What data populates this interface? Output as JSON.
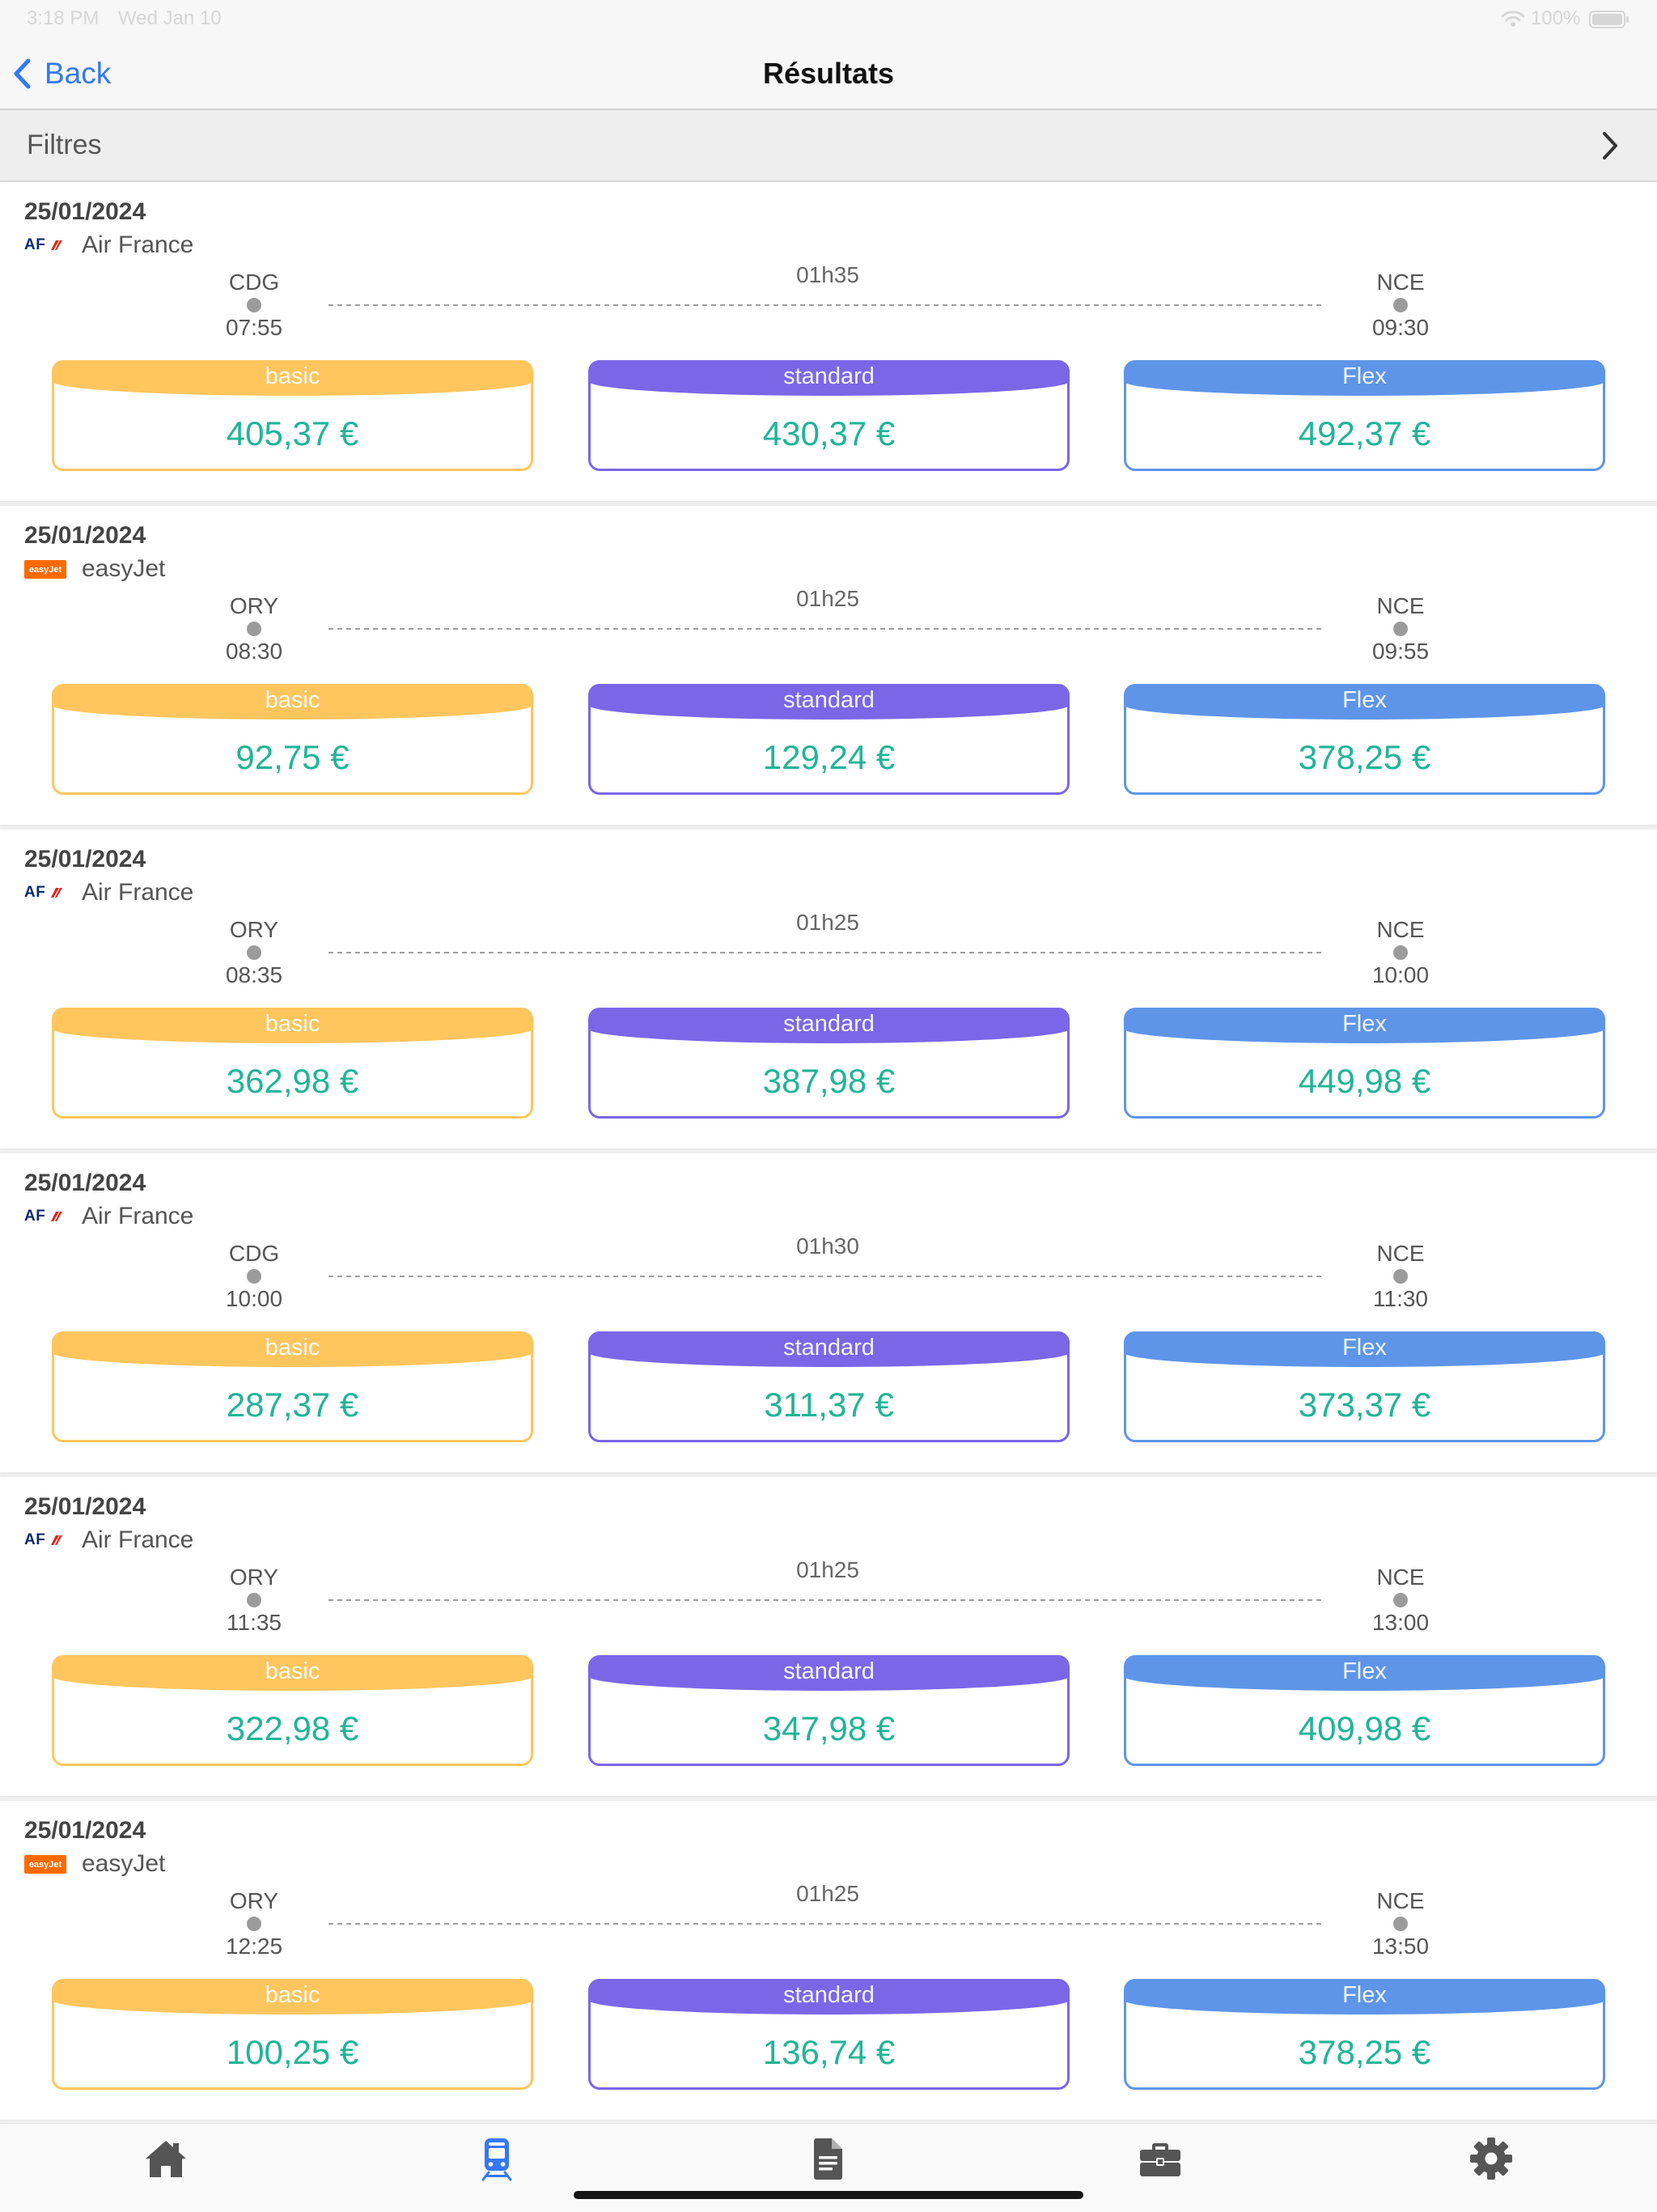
{
  "status_bar": {
    "time": "3:18 PM",
    "date": "Wed Jan 10",
    "battery": "100%",
    "icons": [
      "wifi-icon",
      "battery-icon"
    ]
  },
  "nav": {
    "back_icon": "chevron-left-icon",
    "back_label": "Back",
    "title": "Résultats"
  },
  "filters": {
    "label": "Filtres",
    "icon": "chevron-right-icon"
  },
  "colors": {
    "accent": "#3478F6",
    "price": "#20B596",
    "icon": "#555555"
  },
  "fare_classes": [
    {
      "label": "basic",
      "color": "#FFC65E"
    },
    {
      "label": "standard",
      "color": "#7B66E8"
    },
    {
      "label": "Flex",
      "color": "#5E95E9"
    }
  ],
  "results": [
    {
      "date": "25/01/2024",
      "airline": "Air France",
      "logo": {
        "name": "air-france-logo",
        "text": "AF"
      },
      "origin": "CDG",
      "departure": "07:55",
      "duration": "01h35",
      "destination": "NCE",
      "arrival": "09:30",
      "prices": [
        "405,37 €",
        "430,37 €",
        "492,37 €"
      ]
    },
    {
      "date": "25/01/2024",
      "airline": "easyJet",
      "logo": {
        "name": "easyjet-logo",
        "text": "easyJet"
      },
      "origin": "ORY",
      "departure": "08:30",
      "duration": "01h25",
      "destination": "NCE",
      "arrival": "09:55",
      "prices": [
        "92,75 €",
        "129,24 €",
        "378,25 €"
      ]
    },
    {
      "date": "25/01/2024",
      "airline": "Air France",
      "logo": {
        "name": "air-france-logo",
        "text": "AF"
      },
      "origin": "ORY",
      "departure": "08:35",
      "duration": "01h25",
      "destination": "NCE",
      "arrival": "10:00",
      "prices": [
        "362,98 €",
        "387,98 €",
        "449,98 €"
      ]
    },
    {
      "date": "25/01/2024",
      "airline": "Air France",
      "logo": {
        "name": "air-france-logo",
        "text": "AF"
      },
      "origin": "CDG",
      "departure": "10:00",
      "duration": "01h30",
      "destination": "NCE",
      "arrival": "11:30",
      "prices": [
        "287,37 €",
        "311,37 €",
        "373,37 €"
      ]
    },
    {
      "date": "25/01/2024",
      "airline": "Air France",
      "logo": {
        "name": "air-france-logo",
        "text": "AF"
      },
      "origin": "ORY",
      "departure": "11:35",
      "duration": "01h25",
      "destination": "NCE",
      "arrival": "13:00",
      "prices": [
        "322,98 €",
        "347,98 €",
        "409,98 €"
      ]
    },
    {
      "date": "25/01/2024",
      "airline": "easyJet",
      "logo": {
        "name": "easyjet-logo",
        "text": "easyJet"
      },
      "origin": "ORY",
      "departure": "12:25",
      "duration": "01h25",
      "destination": "NCE",
      "arrival": "13:50",
      "prices": [
        "100,25 €",
        "136,74 €",
        "378,25 €"
      ]
    }
  ],
  "tab_bar": {
    "items": [
      {
        "icon": "home-icon",
        "active": false
      },
      {
        "icon": "train-icon",
        "active": true
      },
      {
        "icon": "document-icon",
        "active": false
      },
      {
        "icon": "briefcase-icon",
        "active": false
      },
      {
        "icon": "gear-icon",
        "active": false
      }
    ]
  }
}
